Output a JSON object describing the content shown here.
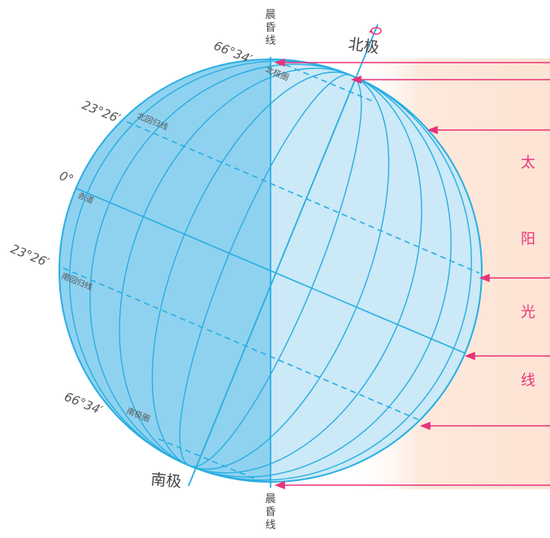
{
  "labels": {
    "terminator_top": "晨昏线",
    "terminator_bottom": "晨昏线",
    "north_pole": "北极",
    "south_pole": "南极",
    "arctic_circle": "北极圈",
    "antarctic_circle": "南极圈",
    "tropic_cancer": "北回归线",
    "tropic_capricorn": "南回归线",
    "equator": "赤道",
    "lat_66_north": "66°34′",
    "lat_23_north": "23°26′",
    "lat_0": "0°",
    "lat_23_south": "23°26′",
    "lat_66_south": "66°34′",
    "sunlight": [
      "太",
      "阳",
      "光",
      "线"
    ]
  },
  "colors": {
    "globe_lit": "#cbe9f7",
    "globe_night": "#7fcbec",
    "grid_line": "#29aee3",
    "sun_ray": "#e8337a",
    "sun_band": "#fde9dc"
  }
}
